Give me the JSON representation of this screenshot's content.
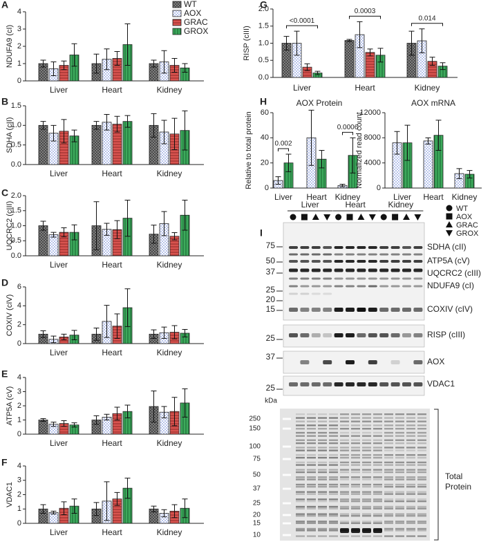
{
  "chart_data": [
    {
      "type": "bar",
      "panel": "A",
      "ylabel": "NDUFA9 (cI)",
      "categories": [
        "Liver",
        "Heart",
        "Kidney"
      ],
      "ylim": [
        0,
        4
      ],
      "yticks": [
        0,
        1,
        2,
        3,
        4
      ],
      "series": [
        {
          "name": "WT",
          "color": "#8a8a8a",
          "values": [
            1.0,
            1.0,
            1.0
          ],
          "errors": [
            0.2,
            0.55,
            0.2
          ]
        },
        {
          "name": "AOX",
          "color": "#b7c3ea",
          "values": [
            0.7,
            1.25,
            1.1
          ],
          "errors": [
            0.4,
            0.6,
            0.65
          ]
        },
        {
          "name": "GRAC",
          "color": "#d9534f",
          "values": [
            0.9,
            1.3,
            0.9
          ],
          "errors": [
            0.25,
            0.4,
            0.4
          ]
        },
        {
          "name": "GROX",
          "color": "#3daa5c",
          "values": [
            1.5,
            2.1,
            0.75
          ],
          "errors": [
            0.65,
            1.2,
            0.25
          ]
        }
      ]
    },
    {
      "type": "bar",
      "panel": "B",
      "ylabel": "SDHA (cII)",
      "categories": [
        "Liver",
        "Heart",
        "Kidney"
      ],
      "ylim": [
        0,
        1.5
      ],
      "yticks": [
        {
          "value": 0,
          "label": "0.0"
        },
        {
          "value": 0.5,
          "label": "0.5"
        },
        {
          "value": 1,
          "label": "1.0"
        },
        {
          "value": 1.5,
          "label": "1.5"
        }
      ],
      "series": [
        {
          "color": "#8a8a8a",
          "values": [
            1.0,
            1.0,
            1.0
          ],
          "errors": [
            0.1,
            0.1,
            0.3
          ]
        },
        {
          "color": "#b7c3ea",
          "values": [
            0.8,
            1.08,
            0.83
          ],
          "errors": [
            0.2,
            0.2,
            0.3
          ]
        },
        {
          "color": "#d9534f",
          "values": [
            0.85,
            1.03,
            0.78
          ],
          "errors": [
            0.3,
            0.2,
            0.4
          ]
        },
        {
          "color": "#3daa5c",
          "values": [
            0.73,
            1.1,
            0.87
          ],
          "errors": [
            0.15,
            0.15,
            0.5
          ]
        }
      ]
    },
    {
      "type": "bar",
      "panel": "C",
      "ylabel": "UQCRC2 (cIII)",
      "categories": [
        "Liver",
        "Heart",
        "Kidney"
      ],
      "ylim": [
        0,
        2
      ],
      "yticks": [
        {
          "value": 0,
          "label": "0.0"
        },
        {
          "value": 0.5,
          "label": "0.5"
        },
        {
          "value": 1,
          "label": "1.0"
        },
        {
          "value": 1.5,
          "label": "1.5"
        },
        {
          "value": 2,
          "label": "2.0"
        }
      ],
      "series": [
        {
          "color": "#8a8a8a",
          "values": [
            1.0,
            1.0,
            0.72
          ],
          "errors": [
            0.15,
            0.8,
            0.3
          ]
        },
        {
          "color": "#b7c3ea",
          "values": [
            0.7,
            0.88,
            1.07
          ],
          "errors": [
            0.08,
            0.2,
            0.4
          ]
        },
        {
          "color": "#d9534f",
          "values": [
            0.78,
            0.87,
            0.65
          ],
          "errors": [
            0.15,
            0.3,
            0.12
          ]
        },
        {
          "color": "#3daa5c",
          "values": [
            0.78,
            1.25,
            1.35
          ],
          "errors": [
            0.25,
            0.6,
            0.5
          ]
        }
      ]
    },
    {
      "type": "bar",
      "panel": "D",
      "ylabel": "COXIV (cIV)",
      "categories": [
        "Liver",
        "Heart",
        "Kidney"
      ],
      "ylim": [
        0,
        6
      ],
      "yticks": [
        0,
        2,
        4,
        6
      ],
      "series": [
        {
          "color": "#8a8a8a",
          "values": [
            1.0,
            1.0,
            1.0
          ],
          "errors": [
            0.35,
            0.65,
            0.45
          ]
        },
        {
          "color": "#b7c3ea",
          "values": [
            0.45,
            2.35,
            1.15
          ],
          "errors": [
            0.35,
            1.7,
            0.6
          ]
        },
        {
          "color": "#d9534f",
          "values": [
            0.7,
            1.85,
            1.2
          ],
          "errors": [
            0.3,
            1.3,
            0.7
          ]
        },
        {
          "color": "#3daa5c",
          "values": [
            0.9,
            3.8,
            1.1
          ],
          "errors": [
            0.5,
            2.0,
            0.4
          ]
        }
      ]
    },
    {
      "type": "bar",
      "panel": "E",
      "ylabel": "ATP5A (cV)",
      "categories": [
        "Liver",
        "Heart",
        "Kidney"
      ],
      "ylim": [
        0,
        4
      ],
      "yticks": [
        0,
        1,
        2,
        3,
        4
      ],
      "series": [
        {
          "color": "#8a8a8a",
          "values": [
            1.0,
            1.0,
            1.95
          ],
          "errors": [
            0.1,
            0.3,
            1.1
          ]
        },
        {
          "color": "#b7c3ea",
          "values": [
            0.7,
            1.2,
            1.55
          ],
          "errors": [
            0.15,
            0.2,
            0.4
          ]
        },
        {
          "color": "#d9534f",
          "values": [
            0.75,
            1.45,
            1.6
          ],
          "errors": [
            0.2,
            0.45,
            1.0
          ]
        },
        {
          "color": "#3daa5c",
          "values": [
            0.65,
            1.6,
            2.2
          ],
          "errors": [
            0.15,
            0.45,
            1.0
          ]
        }
      ]
    },
    {
      "type": "bar",
      "panel": "F",
      "ylabel": "VDAC1",
      "categories": [
        "Liver",
        "Heart",
        "Kidney"
      ],
      "ylim": [
        0,
        4
      ],
      "yticks": [
        0,
        1,
        2,
        3,
        4
      ],
      "series": [
        {
          "color": "#8a8a8a",
          "values": [
            1.0,
            1.0,
            1.0
          ],
          "errors": [
            0.3,
            0.45,
            0.2
          ]
        },
        {
          "color": "#b7c3ea",
          "values": [
            0.75,
            1.55,
            0.7
          ],
          "errors": [
            0.1,
            1.35,
            0.25
          ]
        },
        {
          "color": "#d9534f",
          "values": [
            1.05,
            1.7,
            0.85
          ],
          "errors": [
            0.45,
            0.45,
            0.45
          ]
        },
        {
          "color": "#3daa5c",
          "values": [
            1.2,
            2.45,
            1.05
          ],
          "errors": [
            0.5,
            0.7,
            0.65
          ]
        }
      ]
    },
    {
      "type": "bar",
      "panel": "G",
      "ylabel": "RISP (cIII)",
      "categories": [
        "Liver",
        "Heart",
        "Kidney"
      ],
      "ylim": [
        0,
        2
      ],
      "yticks": [
        {
          "value": 0,
          "label": "0.0"
        },
        {
          "value": 0.5,
          "label": "0.5"
        },
        {
          "value": 1,
          "label": "1.0"
        },
        {
          "value": 1.5,
          "label": "1.5"
        },
        {
          "value": 2,
          "label": "2.0"
        }
      ],
      "annotations": [
        "<0.0001",
        "0.0003",
        "0.014"
      ],
      "series": [
        {
          "color": "#8a8a8a",
          "values": [
            1.0,
            1.08,
            1.0
          ],
          "errors": [
            0.2,
            0.03,
            0.35
          ]
        },
        {
          "color": "#b7c3ea",
          "values": [
            1.0,
            1.25,
            1.07
          ],
          "errors": [
            0.35,
            0.38,
            0.35
          ]
        },
        {
          "color": "#d9534f",
          "values": [
            0.3,
            0.73,
            0.47
          ],
          "errors": [
            0.1,
            0.1,
            0.12
          ]
        },
        {
          "color": "#3daa5c",
          "values": [
            0.13,
            0.65,
            0.33
          ],
          "errors": [
            0.05,
            0.2,
            0.1
          ]
        }
      ]
    },
    {
      "type": "bar",
      "panel": "H",
      "title": "AOX Protein",
      "ylabel": "Relative to total protein",
      "categories": [
        "Liver",
        "Heart",
        "Kidney"
      ],
      "ylim": [
        0,
        60
      ],
      "yticks": [
        0,
        20,
        40,
        60
      ],
      "annotations": [
        "0.002",
        null,
        "0.0006"
      ],
      "series": [
        {
          "color": "#b7c3ea",
          "values": [
            6,
            40,
            2
          ],
          "errors": [
            3,
            22,
            1
          ]
        },
        {
          "color": "#3daa5c",
          "values": [
            20,
            23,
            26
          ],
          "errors": [
            7,
            7,
            14
          ]
        }
      ]
    },
    {
      "type": "bar",
      "title": "AOX mRNA",
      "ylabel": "Normalized read count",
      "categories": [
        "Liver",
        "Heart",
        "Kidney"
      ],
      "ylim": [
        0,
        12000
      ],
      "yticks": [
        0,
        4000,
        8000,
        12000
      ],
      "series": [
        {
          "color": "#b7c3ea",
          "values": [
            7200,
            7500,
            2300
          ],
          "errors": [
            1800,
            500,
            800
          ]
        },
        {
          "color": "#3daa5c",
          "values": [
            7200,
            8400,
            2200
          ],
          "errors": [
            2800,
            2400,
            600
          ]
        }
      ]
    }
  ],
  "blot": {
    "panel": "I",
    "groups": [
      "Liver",
      "Heart",
      "Kidney"
    ],
    "legend": [
      "WT",
      "AOX",
      "GRAC",
      "GROX"
    ],
    "strips": [
      {
        "markers": [
          75,
          50,
          37,
          25,
          20,
          15
        ],
        "bands": [
          "SDHA (cII)",
          "ATP5A (cV)",
          "UQCRC2 (cIII)",
          "NDUFA9 (cI)",
          "COXIV (cIV)"
        ]
      },
      {
        "markers": [
          25
        ],
        "bands": [
          "RISP (cIII)"
        ]
      },
      {
        "markers": [
          37
        ],
        "bands": [
          "AOX"
        ]
      },
      {
        "markers": [
          25
        ],
        "bands": [
          "VDAC1"
        ]
      }
    ],
    "total": {
      "unit": "kDa",
      "markers": [
        250,
        150,
        100,
        75,
        50,
        37,
        25,
        20,
        15,
        10
      ],
      "label": [
        "Total",
        "Protein"
      ]
    }
  }
}
